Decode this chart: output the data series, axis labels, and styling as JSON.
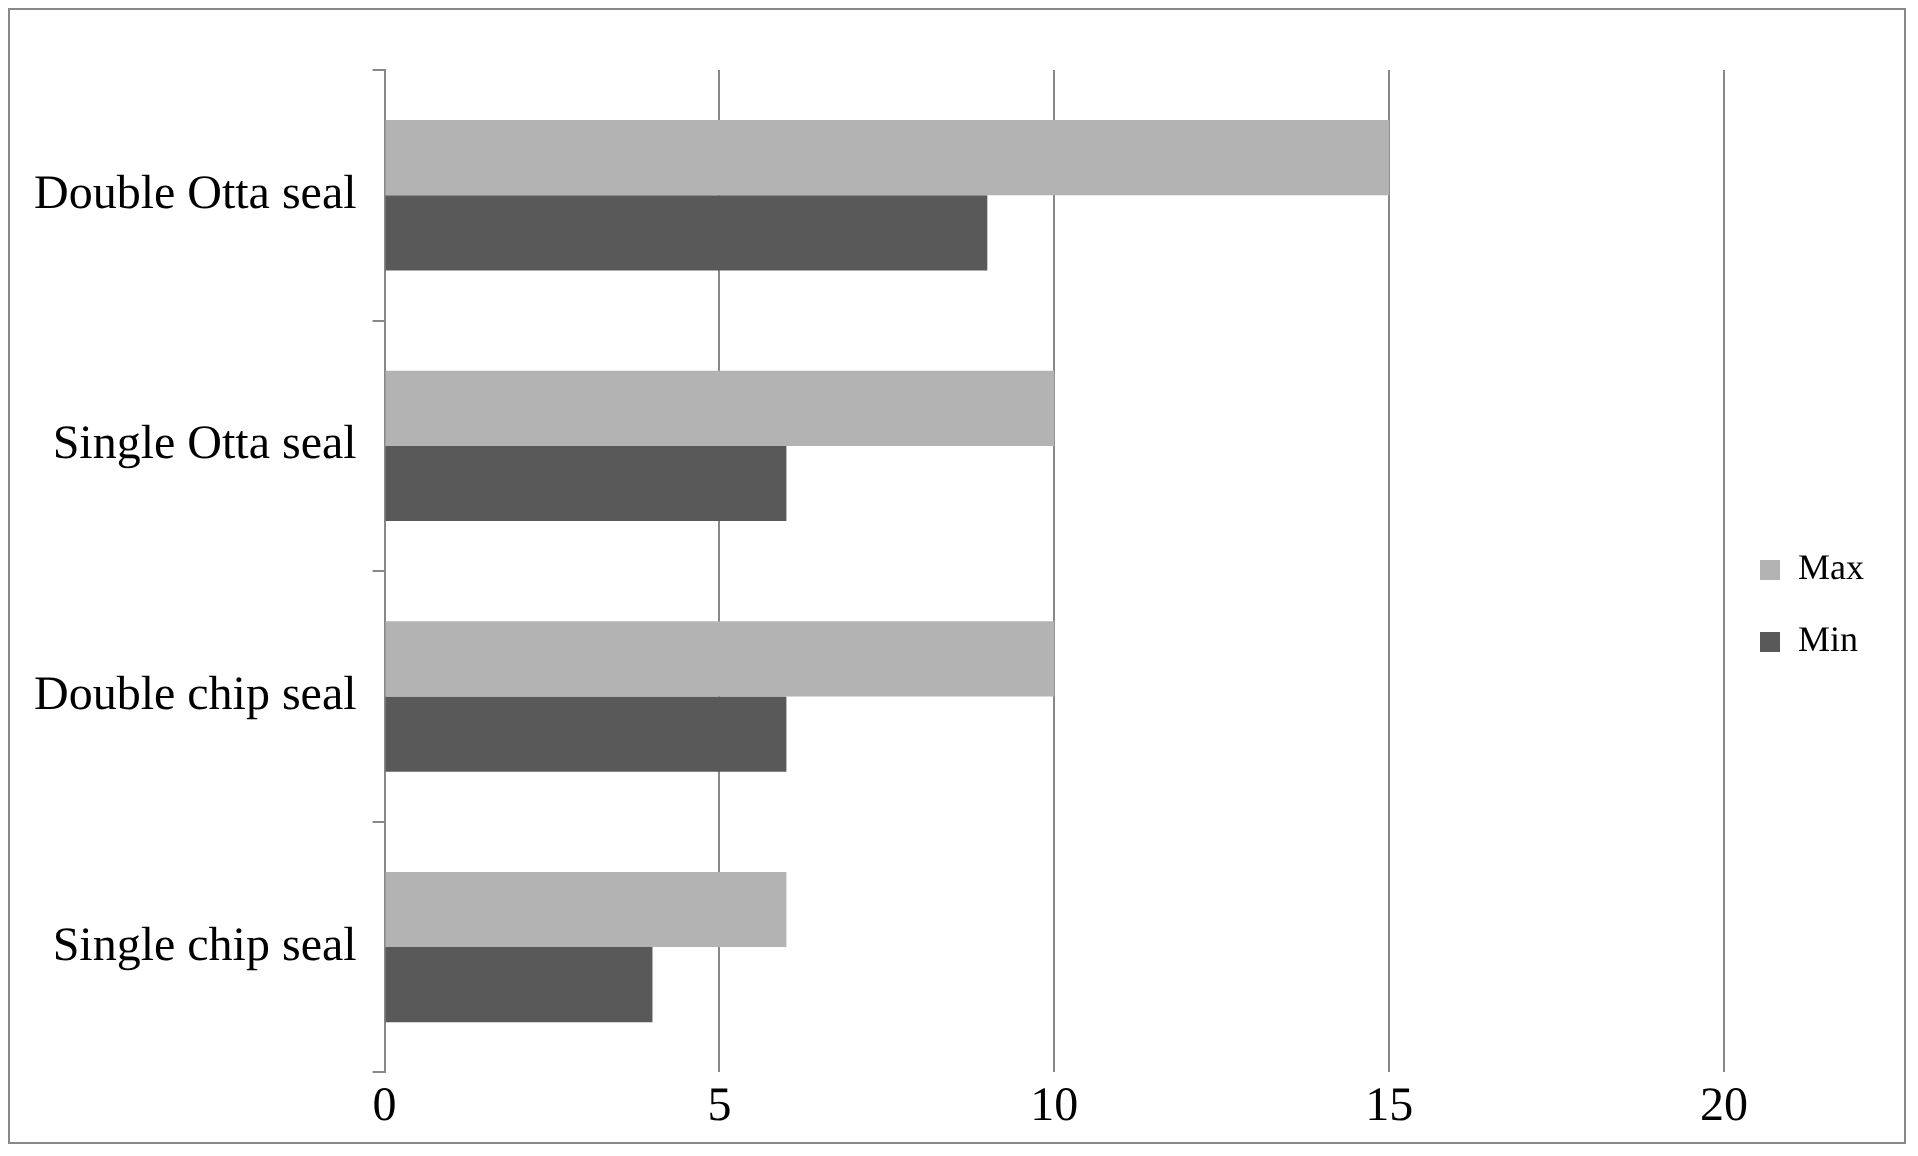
{
  "chart_data": {
    "type": "bar",
    "orientation": "horizontal",
    "categories": [
      "Double Otta seal",
      "Single Otta seal",
      "Double chip seal",
      "Single chip seal"
    ],
    "series": [
      {
        "name": "Max",
        "color": "#b3b3b3",
        "values": [
          15,
          10,
          10,
          6
        ]
      },
      {
        "name": "Min",
        "color": "#595959",
        "values": [
          9,
          6,
          6,
          4
        ]
      }
    ],
    "xlim": [
      0,
      20
    ],
    "xticks": [
      0,
      5,
      10,
      15,
      20
    ],
    "grid": "x",
    "legend": "right"
  }
}
